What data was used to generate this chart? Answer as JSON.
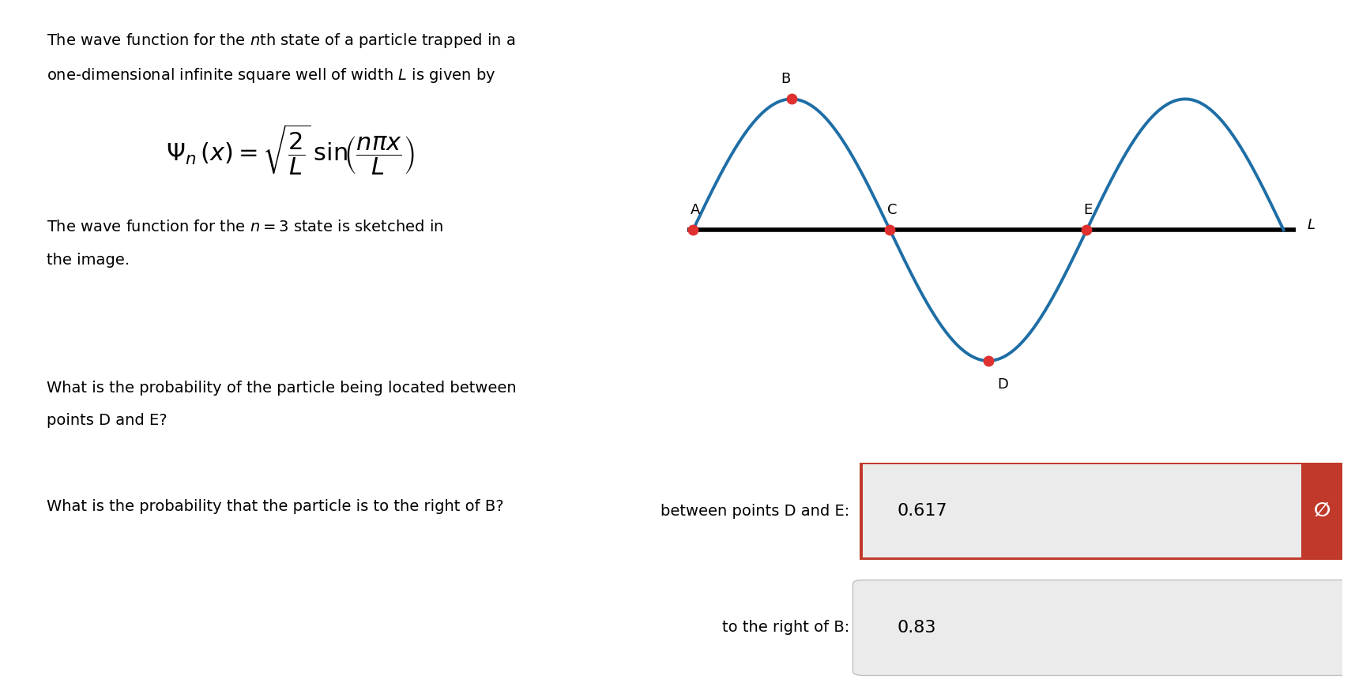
{
  "background_color": "#ffffff",
  "line1": "The wave function for the $n$th state of a particle trapped in a",
  "line2": "one-dimensional infinite square well of width $L$ is given by",
  "state_line1": "The wave function for the $n = 3$ state is sketched in",
  "state_line2": "the image.",
  "q1_line1": "What is the probability of the particle being located between",
  "q1_line2": "points D and E?",
  "q2_line1": "What is the probability that the particle is to the right of B?",
  "label1": "between points D and E:",
  "answer1": "0.617",
  "label2": "to the right of B:",
  "answer2": "0.83",
  "wave_color": "#1e6ea6",
  "axis_color": "#000000",
  "point_color": "#e03030",
  "box1_red": "#c0392b",
  "answer_bg": "#ebebeb",
  "text_color": "#000000",
  "font_size_body": 14,
  "font_size_answer": 16,
  "wave_lw": 2.8,
  "axis_lw": 4.0,
  "marker_size": 10
}
